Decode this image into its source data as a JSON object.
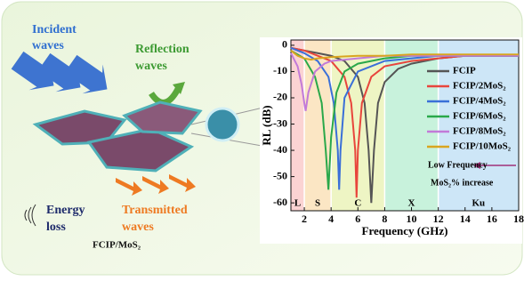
{
  "illustration": {
    "incident": [
      "Incident",
      "waves"
    ],
    "reflection": [
      "Reflection",
      "waves"
    ],
    "energy": [
      "Energy",
      "loss"
    ],
    "transmitted": [
      "Transmitted",
      "waves"
    ],
    "material": "FCIP/MoS₂"
  },
  "chart_data": {
    "type": "line",
    "x_label": "Frequency (GHz)",
    "y_label": "RL (dB)",
    "xlim": [
      1,
      18
    ],
    "ylim": [
      -63,
      2
    ],
    "xticks": [
      2,
      4,
      6,
      8,
      10,
      12,
      14,
      16,
      18
    ],
    "yticks": [
      0,
      -10,
      -20,
      -30,
      -40,
      -50,
      -60
    ],
    "bands": [
      {
        "label": "L",
        "range": [
          1,
          2
        ],
        "color": "#fbd3d3"
      },
      {
        "label": "S",
        "range": [
          2,
          4
        ],
        "color": "#fbe6c4"
      },
      {
        "label": "C",
        "range": [
          4,
          8
        ],
        "color": "#eef5c4"
      },
      {
        "label": "X",
        "range": [
          8,
          12
        ],
        "color": "#c8f2dc"
      },
      {
        "label": "Ku",
        "range": [
          12,
          18
        ],
        "color": "#cde6f7"
      }
    ],
    "annotation": [
      "Low Frequency",
      "MoS₂% increase"
    ],
    "series": [
      {
        "name": "FCIP",
        "color": "#555555",
        "x": [
          1,
          2,
          3,
          4,
          5,
          6,
          6.5,
          6.8,
          7,
          7.2,
          7.5,
          8,
          9,
          10,
          12,
          14,
          16,
          18
        ],
        "values": [
          -1,
          -2,
          -3,
          -4,
          -6,
          -12,
          -22,
          -40,
          -60,
          -40,
          -22,
          -14,
          -9,
          -7,
          -5,
          -4,
          -4,
          -4
        ]
      },
      {
        "name": "FCIP/2MoS₂",
        "color": "#e8453c",
        "x": [
          1,
          2,
          3,
          4,
          5,
          5.5,
          5.8,
          5.9,
          6,
          6.3,
          7,
          8,
          10,
          12,
          14,
          16,
          18
        ],
        "values": [
          -1,
          -2,
          -4,
          -6,
          -12,
          -22,
          -40,
          -58,
          -40,
          -22,
          -12,
          -8,
          -6,
          -5,
          -4,
          -4,
          -4
        ]
      },
      {
        "name": "FCIP/4MoS₂",
        "color": "#3a6fd8",
        "x": [
          1,
          2,
          3,
          3.8,
          4.2,
          4.5,
          4.6,
          4.7,
          5,
          6,
          8,
          10,
          12,
          14,
          16,
          18
        ],
        "values": [
          -1,
          -3,
          -6,
          -12,
          -22,
          -40,
          -55,
          -40,
          -20,
          -10,
          -6,
          -5,
          -4,
          -4,
          -4,
          -4
        ]
      },
      {
        "name": "FCIP/6MoS₂",
        "color": "#2aa84a",
        "x": [
          1,
          2,
          2.8,
          3.3,
          3.6,
          3.8,
          4,
          4.4,
          5,
          6,
          8,
          10,
          12,
          14,
          16,
          18
        ],
        "values": [
          -2,
          -5,
          -12,
          -22,
          -40,
          -55,
          -35,
          -18,
          -10,
          -7,
          -5,
          -4,
          -4,
          -4,
          -4,
          -4
        ]
      },
      {
        "name": "FCIP/8MoS₂",
        "color": "#c27ad8",
        "x": [
          1,
          1.5,
          1.8,
          2,
          2.1,
          2.3,
          2.8,
          3.5,
          4,
          6,
          8,
          10,
          12,
          14,
          16,
          18
        ],
        "values": [
          -3,
          -8,
          -15,
          -22,
          -25,
          -18,
          -10,
          -7,
          -6,
          -5,
          -4,
          -4,
          -4,
          -4,
          -4,
          -4
        ]
      },
      {
        "name": "FCIP/10MoS₂",
        "color": "#d9a520",
        "x": [
          1,
          1.5,
          2,
          2.5,
          3,
          4,
          6,
          8,
          10,
          12,
          14,
          16,
          18
        ],
        "values": [
          -2,
          -4,
          -5,
          -5.5,
          -5,
          -4.5,
          -4,
          -4,
          -3.5,
          -3.5,
          -3.5,
          -3.5,
          -3.5
        ]
      }
    ]
  }
}
